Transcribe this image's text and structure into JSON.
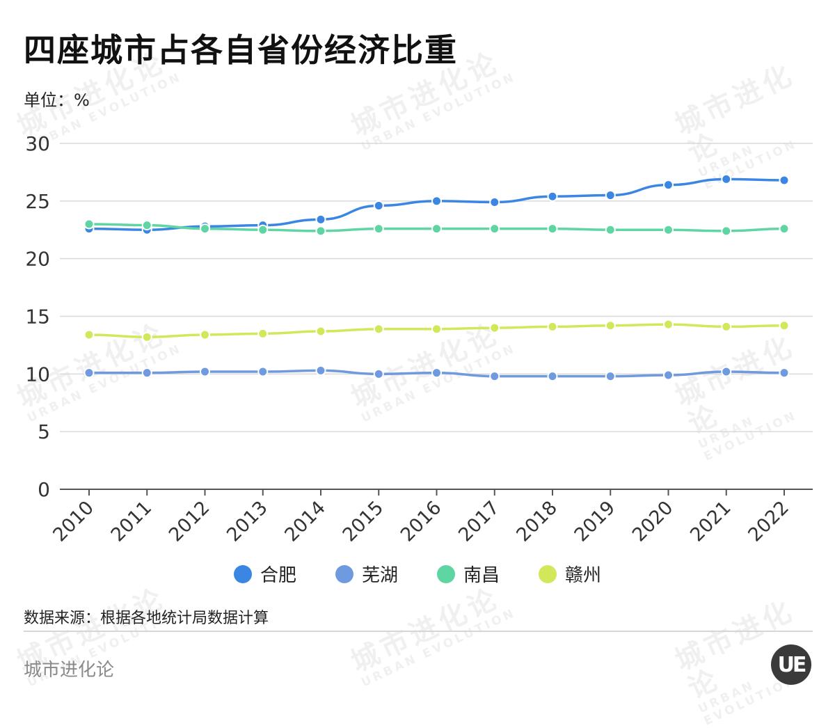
{
  "title": "四座城市占各自省份经济比重",
  "unit_label": "单位：%",
  "source": "数据来源：根据各地统计局数据计算",
  "brand": "城市进化论",
  "logo_text": "UE",
  "watermark": {
    "cn": "城市进化论",
    "en": "URBAN EVOLUTION"
  },
  "chart_data": {
    "type": "line",
    "title": "四座城市占各自省份经济比重",
    "ylabel": "单位：%",
    "xlabel": "",
    "ylim": [
      0,
      30
    ],
    "yticks": [
      0,
      5,
      10,
      15,
      20,
      25,
      30
    ],
    "categories": [
      "2010",
      "2011",
      "2012",
      "2013",
      "2014",
      "2015",
      "2016",
      "2017",
      "2018",
      "2019",
      "2020",
      "2021",
      "2022"
    ],
    "grid": true,
    "legend_position": "bottom",
    "series": [
      {
        "name": "合肥",
        "color": "#3b86e3",
        "values": [
          22.6,
          22.5,
          22.8,
          22.9,
          23.4,
          24.6,
          25.0,
          24.9,
          25.4,
          25.5,
          26.4,
          26.9,
          26.8
        ]
      },
      {
        "name": "芜湖",
        "color": "#6f9ae0",
        "values": [
          10.1,
          10.1,
          10.2,
          10.2,
          10.3,
          10.0,
          10.1,
          9.8,
          9.8,
          9.8,
          9.9,
          10.2,
          10.1
        ]
      },
      {
        "name": "南昌",
        "color": "#5fd5a4",
        "values": [
          23.0,
          22.9,
          22.6,
          22.5,
          22.4,
          22.6,
          22.6,
          22.6,
          22.6,
          22.5,
          22.5,
          22.4,
          22.6
        ]
      },
      {
        "name": "赣州",
        "color": "#d2e85a",
        "values": [
          13.4,
          13.2,
          13.4,
          13.5,
          13.7,
          13.9,
          13.9,
          14.0,
          14.1,
          14.2,
          14.3,
          14.1,
          14.2
        ]
      }
    ]
  }
}
